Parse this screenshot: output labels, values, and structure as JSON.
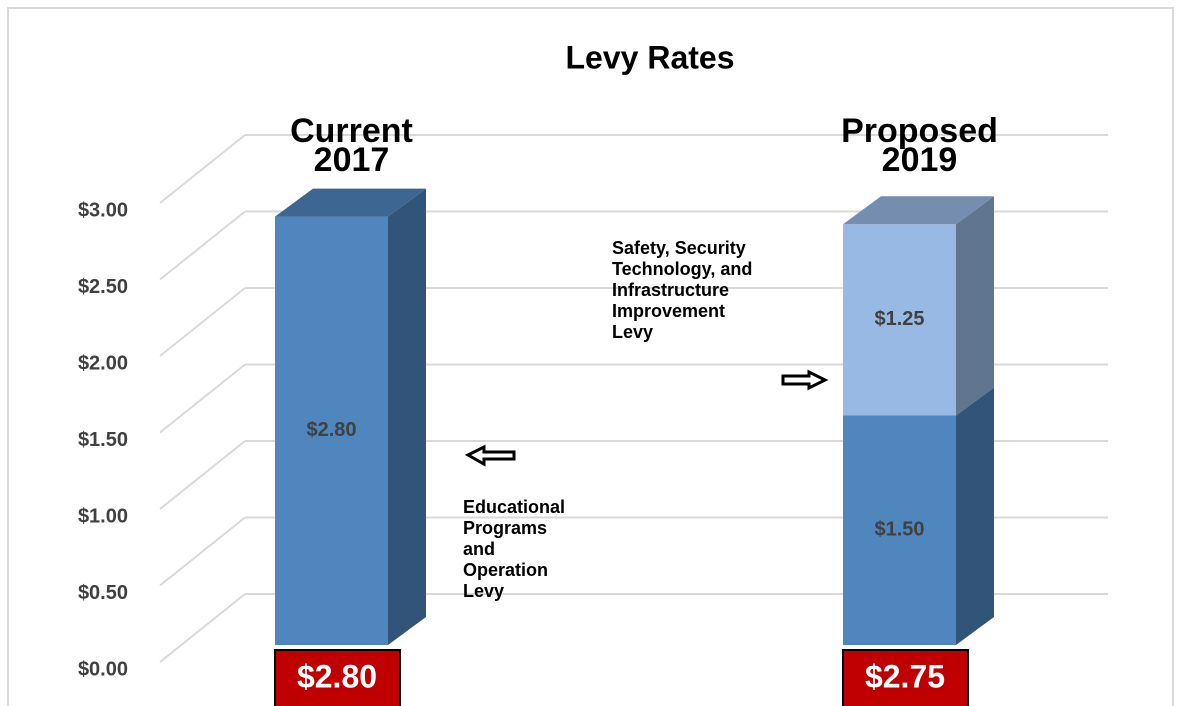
{
  "chart_data": {
    "type": "bar3d_stacked",
    "title": "Levy Rates",
    "categories": [
      "Current",
      "Proposed"
    ],
    "category_years": [
      "2017",
      "2019"
    ],
    "series": [
      {
        "name": "Educational Programs and Operation Levy",
        "color": "#4f86be",
        "values": [
          2.8,
          1.5
        ],
        "value_labels": [
          "$2.80",
          "$1.50"
        ]
      },
      {
        "name": "Safety, Security Technology, and Infrastructure Improvement Levy",
        "color": "#98b9e3",
        "values": [
          null,
          1.25
        ],
        "value_labels": [
          null,
          "$1.25"
        ]
      }
    ],
    "totals": [
      2.8,
      2.75
    ],
    "total_labels": [
      "$2.80",
      "$2.75"
    ],
    "total_color": "#c00000",
    "ylim": [
      0,
      3
    ],
    "yticks": [
      {
        "value": 0,
        "label": "$0.00"
      },
      {
        "value": 0.5,
        "label": "$0.50"
      },
      {
        "value": 1,
        "label": "$1.00"
      },
      {
        "value": 1.5,
        "label": "$1.50"
      },
      {
        "value": 2,
        "label": "$2.00"
      },
      {
        "value": 2.5,
        "label": "$2.50"
      },
      {
        "value": 3,
        "label": "$3.00"
      }
    ],
    "grid": true
  }
}
